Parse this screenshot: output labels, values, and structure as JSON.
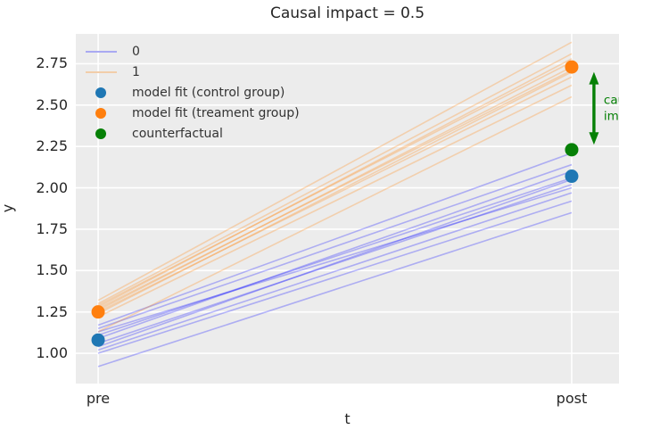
{
  "chart_data": {
    "type": "line",
    "title": "Causal impact = 0.5",
    "xlabel": "t",
    "ylabel": "y",
    "x_categories": [
      "pre",
      "post"
    ],
    "yticks": [
      "1.00",
      "1.25",
      "1.50",
      "1.75",
      "2.00",
      "2.25",
      "2.50",
      "2.75"
    ],
    "ylim": [
      0.817,
      2.93
    ],
    "grid": true,
    "plot_background": "#ececec",
    "gridline_color": "#ffffff",
    "legend_position": "upper-left",
    "series": [
      {
        "name": "0",
        "kind": "line-group",
        "color": "#1a1aff",
        "opacity": 0.3,
        "lines": [
          [
            0.92,
            1.85
          ],
          [
            1.0,
            1.92
          ],
          [
            1.02,
            1.97
          ],
          [
            1.04,
            2.05
          ],
          [
            1.06,
            2.02
          ],
          [
            1.09,
            2.1
          ],
          [
            1.11,
            2.06
          ],
          [
            1.13,
            2.0
          ],
          [
            1.15,
            2.14
          ],
          [
            1.17,
            2.21
          ]
        ]
      },
      {
        "name": "1",
        "kind": "line-group",
        "color": "#ff8c1a",
        "opacity": 0.3,
        "lines": [
          [
            1.13,
            2.55
          ],
          [
            1.22,
            2.62
          ],
          [
            1.24,
            2.7
          ],
          [
            1.25,
            2.67
          ],
          [
            1.26,
            2.73
          ],
          [
            1.27,
            2.71
          ],
          [
            1.28,
            2.78
          ],
          [
            1.29,
            2.76
          ],
          [
            1.3,
            2.81
          ],
          [
            1.32,
            2.88
          ]
        ]
      }
    ],
    "points": [
      {
        "name": "model fit (control group)",
        "color": "#1f77b4",
        "pre": 1.08,
        "post": 2.07
      },
      {
        "name": "model fit (treament group)",
        "color": "#ff7f0e",
        "pre": 1.25,
        "post": 2.73
      },
      {
        "name": "counterfactual",
        "color": "#068006",
        "post": 2.23
      }
    ],
    "legend_items": [
      {
        "swatch": "line",
        "color": "#a9a9f2",
        "label": "0"
      },
      {
        "swatch": "line",
        "color": "#f2cda9",
        "label": "1"
      },
      {
        "swatch": "dot",
        "color": "#1f77b4",
        "label": "model fit (control group)"
      },
      {
        "swatch": "dot",
        "color": "#ff7f0e",
        "label": "model fit (treament group)"
      },
      {
        "swatch": "dot",
        "color": "#068006",
        "label": "counterfactual"
      }
    ],
    "annotation": {
      "label_lines": [
        "causal",
        "impact"
      ],
      "color": "#068006",
      "arrow_top_value": 2.7,
      "arrow_bottom_value": 2.26,
      "arrow_x_t": 1.047
    }
  }
}
